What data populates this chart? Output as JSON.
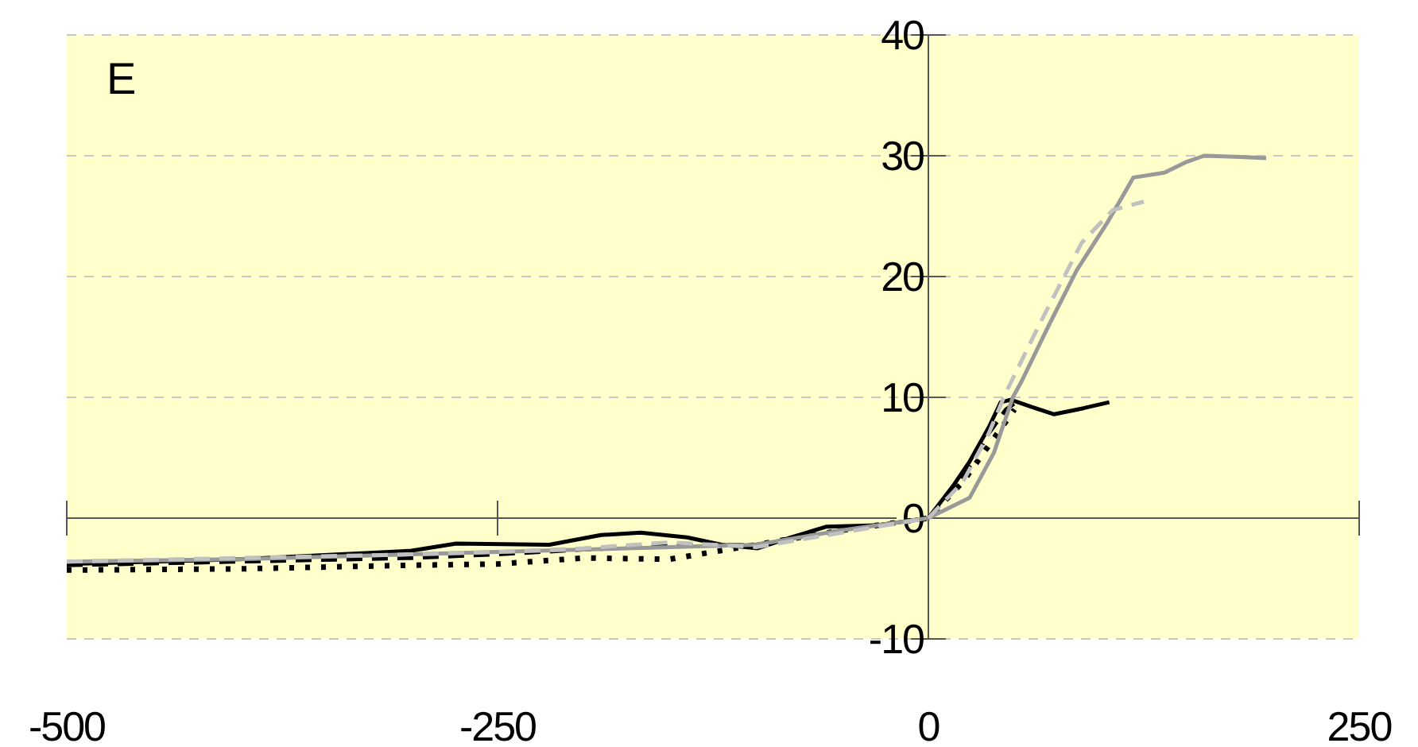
{
  "chart_data": {
    "type": "line",
    "annotations": [
      "E"
    ],
    "xlim": [
      -500,
      250
    ],
    "ylim": [
      -10,
      40
    ],
    "xticks": [
      -500,
      -250,
      0,
      250
    ],
    "yticks": [
      -10,
      0,
      10,
      20,
      30,
      40
    ],
    "grid": "y",
    "marker": "none",
    "series": [
      {
        "color": "#000000",
        "line_style": "solid",
        "x": [
          -500,
          -400,
          -300,
          -274,
          -220,
          -190,
          -167,
          -140,
          -120,
          -99,
          -80,
          -59,
          -30,
          0,
          15,
          24,
          35,
          42,
          48,
          60,
          73,
          90,
          105
        ],
        "values": [
          -3.8,
          -3.4,
          -2.7,
          -2.1,
          -2.2,
          -1.4,
          -1.2,
          -1.6,
          -2.2,
          -2.5,
          -1.6,
          -0.7,
          -0.6,
          0,
          2.8,
          4.7,
          7.5,
          9.6,
          9.8,
          9.2,
          8.6,
          9.1,
          9.6
        ]
      },
      {
        "color": "#000000",
        "line_style": "dashed",
        "x": [
          -500,
          -400,
          -300,
          -250,
          -200,
          -150,
          -100,
          -50,
          0,
          15,
          25,
          35,
          45,
          50
        ],
        "values": [
          -3.9,
          -3.6,
          -3.3,
          -3,
          -2.6,
          -2.3,
          -2.2,
          -1,
          0,
          2.5,
          4.5,
          7,
          9,
          9.5
        ]
      },
      {
        "color": "#000000",
        "line_style": "dotted",
        "x": [
          -500,
          -400,
          -300,
          -250,
          -200,
          -150,
          -100,
          -50,
          0,
          20,
          30,
          40,
          50
        ],
        "values": [
          -4.3,
          -4.2,
          -3.9,
          -3.8,
          -3.3,
          -3.4,
          -2.2,
          -1,
          0,
          3,
          5,
          7,
          9
        ]
      },
      {
        "color": "#999999",
        "line_style": "solid",
        "x": [
          -500,
          -400,
          -300,
          -250,
          -200,
          -150,
          -100,
          -50,
          0,
          24,
          38,
          49,
          54,
          70,
          86,
          104,
          119,
          137,
          150,
          160,
          181,
          196
        ],
        "values": [
          -3.6,
          -3.4,
          -3,
          -2.8,
          -2.6,
          -2.4,
          -2.2,
          -1,
          0,
          1.7,
          5.4,
          10,
          11.3,
          16,
          20.5,
          24.5,
          28.2,
          28.6,
          29.5,
          30,
          29.9,
          29.8
        ]
      },
      {
        "color": "#c0c0c0",
        "line_style": "dashed",
        "x": [
          -500,
          -400,
          -300,
          -250,
          -200,
          -150,
          -100,
          -50,
          0,
          20,
          35,
          45,
          65,
          89,
          107,
          125
        ],
        "values": [
          -3.6,
          -3.3,
          -3,
          -2.8,
          -2.5,
          -2,
          -2.4,
          -1.2,
          0,
          3,
          7,
          10.4,
          16.2,
          22.8,
          25.5,
          26.2
        ]
      }
    ]
  }
}
